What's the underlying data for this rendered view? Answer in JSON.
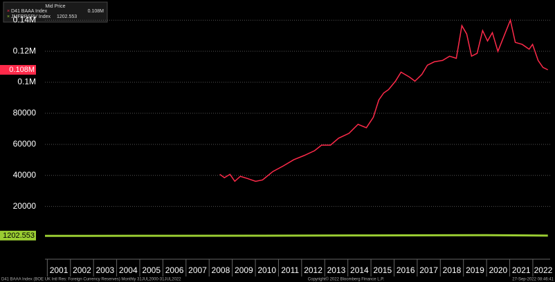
{
  "chart_data": {
    "type": "line",
    "legend_title": "Mid Price",
    "xlim": [
      2000.9,
      2022.75
    ],
    "xticks": [
      2001,
      2002,
      2003,
      2004,
      2005,
      2006,
      2007,
      2008,
      2009,
      2010,
      2011,
      2012,
      2013,
      2014,
      2015,
      2016,
      2017,
      2018,
      2019,
      2020,
      2021,
      2022
    ],
    "ylim": [
      -14000,
      153000
    ],
    "yticks": [
      20000,
      40000,
      60000,
      80000,
      {
        "value": 100000,
        "label": "0.1M"
      },
      {
        "value": 120000,
        "label": "0.12M"
      },
      {
        "value": 140000,
        "label": "0.14M"
      }
    ],
    "grid": true,
    "legend": "top-left",
    "series": [
      {
        "name": "D41 BAAA Index",
        "color": "#ff2a4a",
        "x": [
          2008.46,
          2008.66,
          2008.9,
          2009.11,
          2009.35,
          2009.65,
          2010.01,
          2010.31,
          2010.76,
          2011.21,
          2011.66,
          2012.11,
          2012.56,
          2012.86,
          2013.25,
          2013.6,
          2014.05,
          2014.44,
          2014.8,
          2015.1,
          2015.34,
          2015.55,
          2015.76,
          2016.06,
          2016.3,
          2016.66,
          2016.9,
          2017.2,
          2017.44,
          2017.74,
          2018.1,
          2018.4,
          2018.69,
          2018.93,
          2019.14,
          2019.35,
          2019.59,
          2019.83,
          2020.04,
          2020.25,
          2020.49,
          2020.79,
          2021.03,
          2021.24,
          2021.54,
          2021.84,
          2021.99,
          2022.23,
          2022.44,
          2022.65
        ],
        "values": [
          40700,
          38500,
          40700,
          36200,
          39400,
          38000,
          36200,
          37100,
          42500,
          46100,
          50100,
          52800,
          55900,
          59500,
          59500,
          64000,
          67100,
          72900,
          70700,
          77400,
          88600,
          93100,
          95300,
          100700,
          106500,
          103400,
          100700,
          105100,
          111000,
          113200,
          114100,
          116800,
          115400,
          136500,
          131100,
          116800,
          118600,
          133300,
          126600,
          132000,
          119900,
          131100,
          140000,
          125700,
          124400,
          121300,
          124400,
          114100,
          109600,
          108000
        ],
        "value_labels": [
          null,
          null,
          null,
          null,
          null,
          null,
          null,
          null,
          null,
          null,
          null,
          null,
          null,
          null,
          null,
          null,
          null,
          null,
          null,
          null,
          null,
          null,
          null,
          null,
          null,
          null,
          null,
          null,
          null,
          null,
          null,
          null,
          null,
          null,
          null,
          null,
          null,
          null,
          null,
          null,
          null,
          null,
          null,
          null,
          null,
          null,
          null,
          null,
          null,
          "0.108M"
        ]
      },
      {
        "name": "JMFRRSRV Index",
        "color": "#9acd32",
        "x": [
          2000.9,
          2005,
          2010,
          2015,
          2020,
          2022.65
        ],
        "values": [
          1000,
          1100,
          1150,
          1300,
          1500,
          1202.553
        ],
        "value_labels": [
          null,
          null,
          null,
          null,
          null,
          "1202.553"
        ]
      }
    ],
    "footer_left": "D41 BAAA Index (BOE UK Intl Res: Foreign Currency Reserves)  Monthly 31JUL2000-31JUL2022",
    "footer_center": "Copyright© 2022 Bloomberg Finance L.P.",
    "footer_right": "27-Sep-2022 08:46:41"
  }
}
